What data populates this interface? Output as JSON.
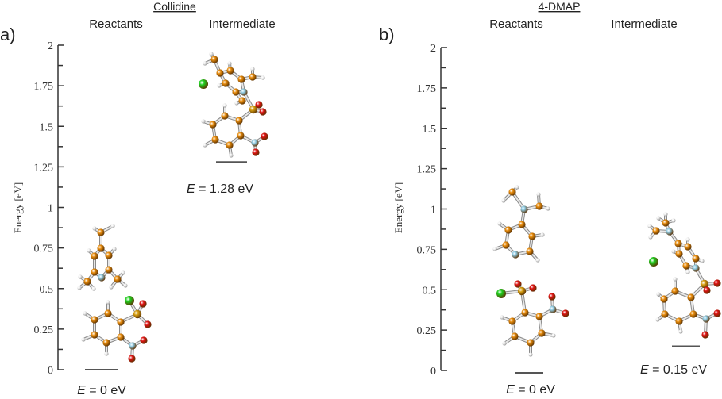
{
  "chart_data": [
    {
      "type": "energy-level-diagram",
      "panel_label": "a)",
      "title": "Collidine",
      "ylabel": "Energy [eV]",
      "ylim": [
        0,
        2
      ],
      "yticks": [
        "0",
        "0.25",
        "0.5",
        "0.75",
        "1",
        "1.25",
        "1.5",
        "1.75",
        "2"
      ],
      "columns": [
        {
          "label": "Reactants",
          "energy": 0,
          "energy_symbol": "E",
          "energy_text": " = 0 eV"
        },
        {
          "label": "Intermediate",
          "energy": 1.28,
          "energy_symbol": "E",
          "energy_text": " = 1.28 eV"
        }
      ]
    },
    {
      "type": "energy-level-diagram",
      "panel_label": "b)",
      "title": "4-DMAP",
      "ylabel": "Energy [eV]",
      "ylim": [
        0,
        2
      ],
      "yticks": [
        "0",
        "0.25",
        "0.5",
        "0.75",
        "1",
        "1.25",
        "1.5",
        "1.75",
        "2"
      ],
      "columns": [
        {
          "label": "Reactants",
          "energy": 0,
          "energy_symbol": "E",
          "energy_text": " = 0 eV"
        },
        {
          "label": "Intermediate",
          "energy": 0.15,
          "energy_symbol": "E",
          "energy_text": " = 0.15 eV"
        }
      ]
    }
  ],
  "atom_colors": {
    "C": "#e88c0c",
    "H": "#f4f4f4",
    "N": "#8ecbe4",
    "O": "#dd1111",
    "S": "#d8a012",
    "Cl": "#1ecf1e"
  }
}
